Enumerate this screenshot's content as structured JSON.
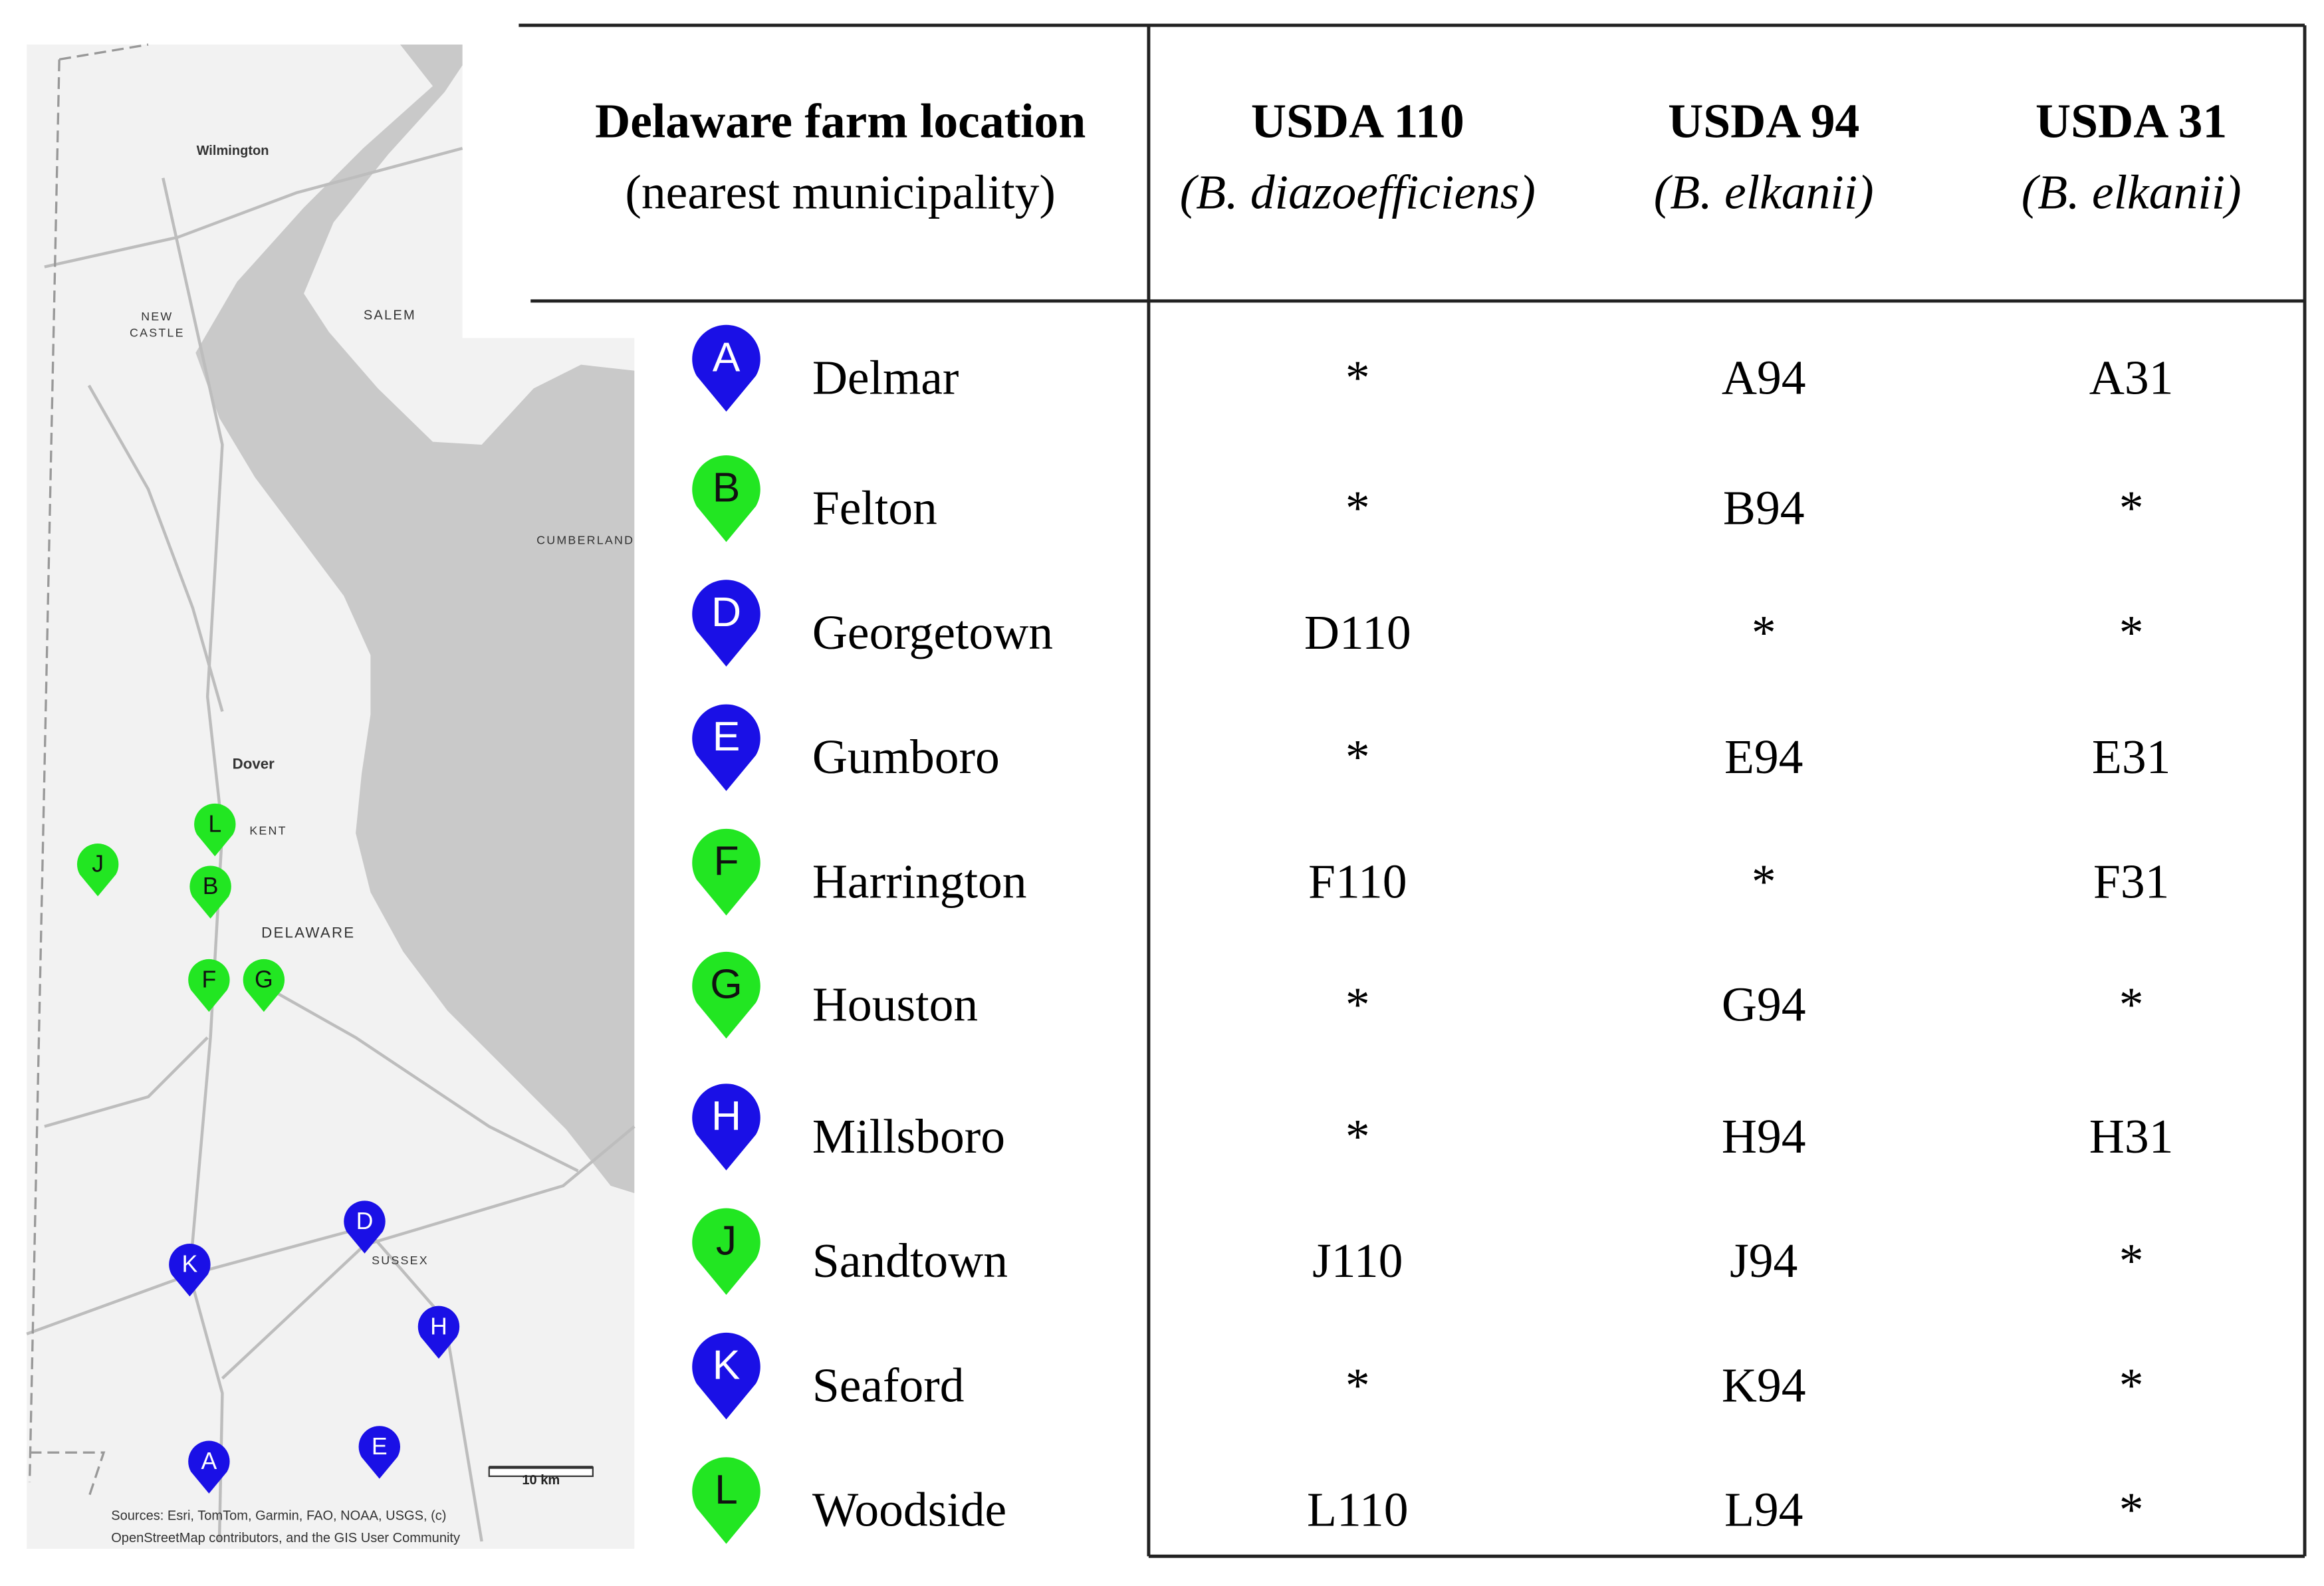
{
  "map": {
    "labels": [
      "Wilmington",
      "NEW",
      "CASTLE",
      "SALEM",
      "CUMBERLAND",
      "Dover",
      "KENT",
      "DELAWARE",
      "SUSSEX"
    ],
    "scale": "10 km",
    "sources": [
      "Sources:   Esri,   TomTom,   Garmin,   FAO,   NOAA,   USGS,   (c)",
      "OpenStreetMap contributors, and the GIS User Community"
    ]
  },
  "table": {
    "header": {
      "location": {
        "title": "Delaware farm location",
        "subtitle": "(nearest municipality)"
      },
      "columns": [
        {
          "title": "USDA 110",
          "subtitle": "(B. diazoefficiens)"
        },
        {
          "title": "USDA 94",
          "subtitle": "(B. elkanii)"
        },
        {
          "title": "USDA 31",
          "subtitle": "(B. elkanii)"
        }
      ]
    },
    "rows": [
      {
        "marker": "A",
        "color": "#1a10e6",
        "location": "Delmar",
        "cells": [
          "*",
          "A94",
          "A31"
        ]
      },
      {
        "marker": "B",
        "color": "#22e622",
        "location": "Felton",
        "cells": [
          "*",
          "B94",
          "*"
        ]
      },
      {
        "marker": "D",
        "color": "#1a10e6",
        "location": "Georgetown",
        "cells": [
          "D110",
          "*",
          "*"
        ]
      },
      {
        "marker": "E",
        "color": "#1a10e6",
        "location": "Gumboro",
        "cells": [
          "*",
          "E94",
          "E31"
        ]
      },
      {
        "marker": "F",
        "color": "#22e622",
        "location": "Harrington",
        "cells": [
          "F110",
          "*",
          "F31"
        ]
      },
      {
        "marker": "G",
        "color": "#22e622",
        "location": "Houston",
        "cells": [
          "*",
          "G94",
          "*"
        ]
      },
      {
        "marker": "H",
        "color": "#1a10e6",
        "location": "Millsboro",
        "cells": [
          "*",
          "H94",
          "H31"
        ]
      },
      {
        "marker": "J",
        "color": "#22e622",
        "location": "Sandtown",
        "cells": [
          "J110",
          "J94",
          "*"
        ]
      },
      {
        "marker": "K",
        "color": "#1a10e6",
        "location": "Seaford",
        "cells": [
          "*",
          "K94",
          "*"
        ]
      },
      {
        "marker": "L",
        "color": "#22e622",
        "location": "Woodside",
        "cells": [
          "L110",
          "L94",
          "*"
        ]
      }
    ]
  }
}
